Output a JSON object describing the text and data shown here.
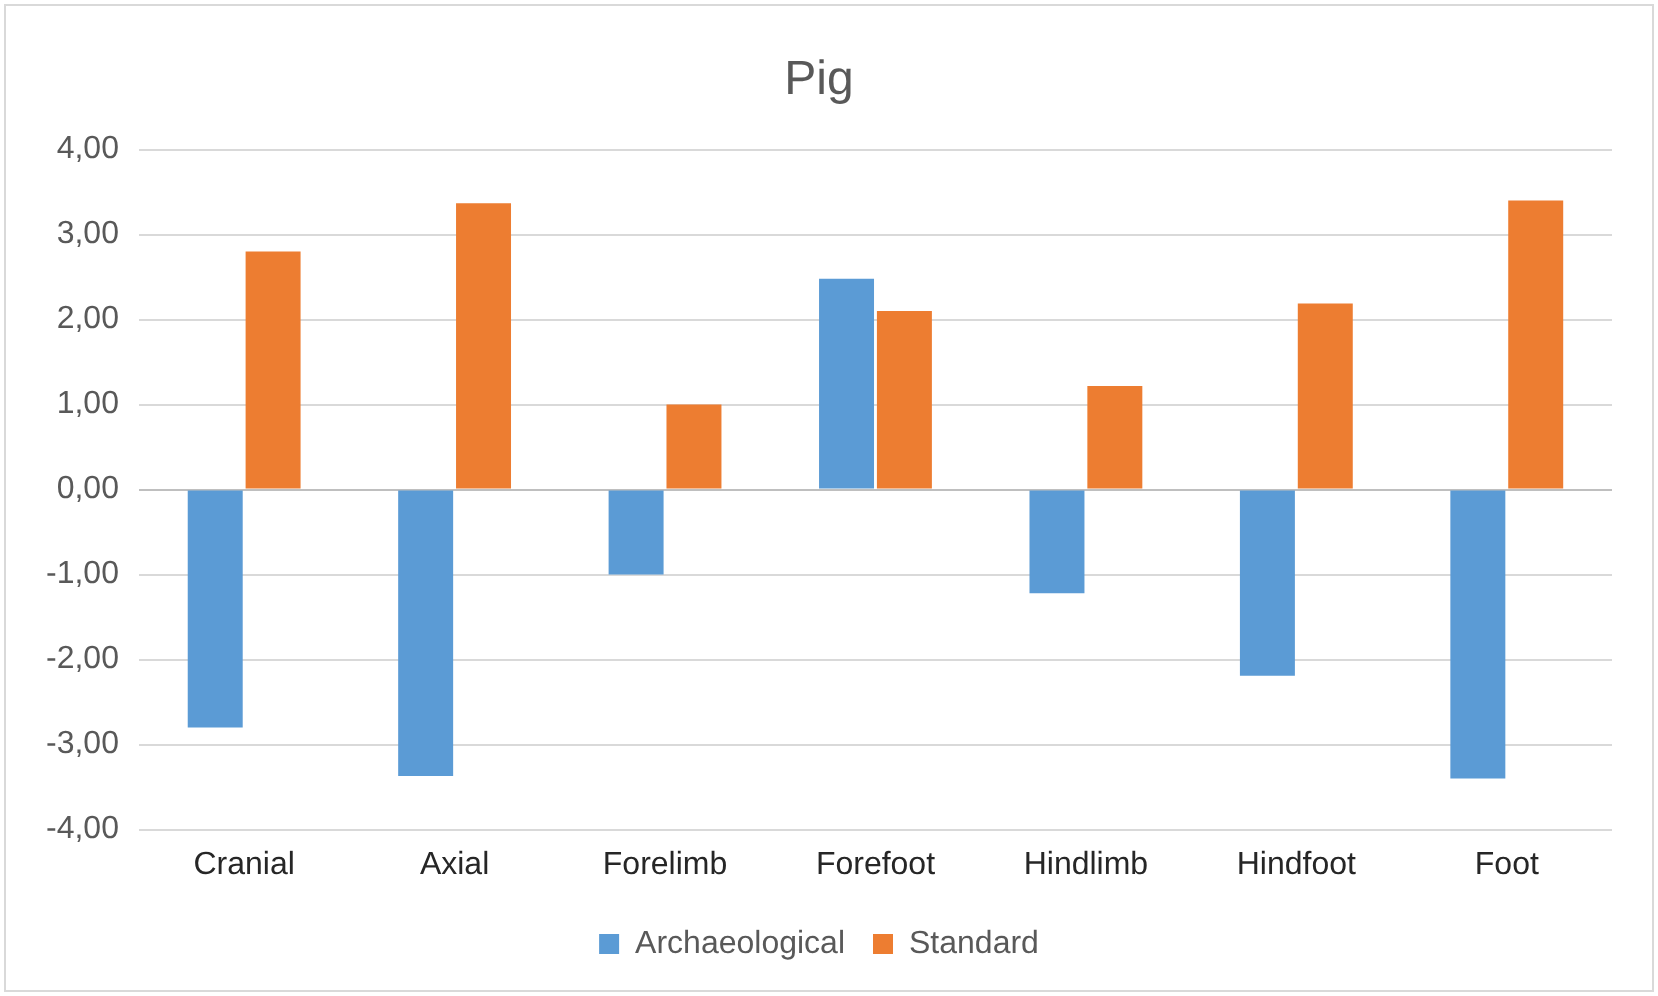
{
  "chart_data": {
    "type": "bar",
    "title": "Pig",
    "categories": [
      "Cranial",
      "Axial",
      "Forelimb",
      "Forefoot",
      "Hindlimb",
      "Hindfoot",
      "Foot"
    ],
    "series": [
      {
        "name": "Archaeological",
        "color": "#5b9bd5",
        "values": [
          -2.8,
          -3.37,
          -1.0,
          2.48,
          -1.22,
          -2.19,
          -3.4
        ]
      },
      {
        "name": "Standard",
        "color": "#ed7d31",
        "values": [
          2.8,
          3.37,
          1.0,
          2.1,
          1.22,
          2.19,
          3.4
        ]
      }
    ],
    "ylim": [
      -4,
      4
    ],
    "yticks": [
      {
        "value": -4,
        "label": "-4,00"
      },
      {
        "value": -3,
        "label": "-3,00"
      },
      {
        "value": -2,
        "label": "-2,00"
      },
      {
        "value": -1,
        "label": "-1,00"
      },
      {
        "value": 0,
        "label": "0,00"
      },
      {
        "value": 1,
        "label": "1,00"
      },
      {
        "value": 2,
        "label": "2,00"
      },
      {
        "value": 3,
        "label": "3,00"
      },
      {
        "value": 4,
        "label": "4,00"
      }
    ],
    "grid": "y",
    "legend": "bottom"
  }
}
